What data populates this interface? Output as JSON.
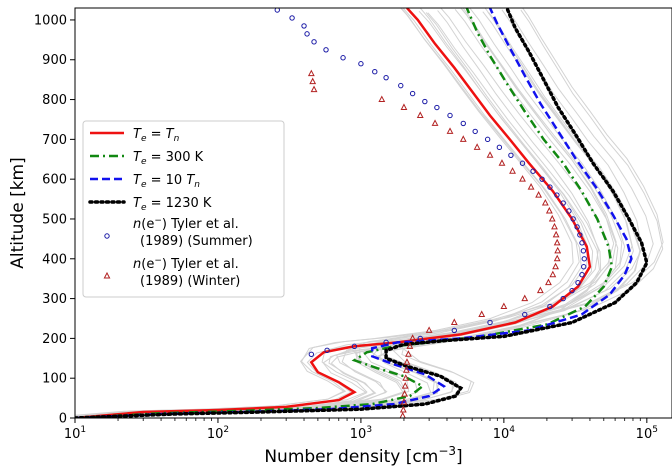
{
  "chart_data": {
    "type": "line",
    "xlabel": "Number density [cm",
    "xlabel_sup": "−3",
    "xlabel_end": "]",
    "ylabel": "Altitude [km]",
    "x_scale": "log",
    "xlim": [
      10,
      150000
    ],
    "ylim": [
      0,
      1030
    ],
    "x_ticks": [
      {
        "value": 10,
        "base": "10",
        "exp": "1"
      },
      {
        "value": 100,
        "base": "10",
        "exp": "2"
      },
      {
        "value": 1000,
        "base": "10",
        "exp": "3"
      },
      {
        "value": 10000,
        "base": "10",
        "exp": "4"
      },
      {
        "value": 100000,
        "base": "10",
        "exp": "5"
      }
    ],
    "y_ticks": [
      0,
      100,
      200,
      300,
      400,
      500,
      600,
      700,
      800,
      900,
      1000
    ],
    "legend_position": "center-left",
    "background_ensemble": {
      "color": "#d3d3d3",
      "count": 22
    },
    "series": [
      {
        "name": "T_e = T_n",
        "legend": {
          "base": "T",
          "sub": "e",
          "mid": " = ",
          "base2": "T",
          "sub2": "n"
        },
        "style": "solid",
        "color": "#ee1111",
        "points": [
          [
            10,
            0
          ],
          [
            30,
            15
          ],
          [
            100,
            20
          ],
          [
            300,
            28
          ],
          [
            700,
            45
          ],
          [
            900,
            65
          ],
          [
            700,
            90
          ],
          [
            500,
            115
          ],
          [
            450,
            140
          ],
          [
            550,
            165
          ],
          [
            900,
            180
          ],
          [
            1800,
            190
          ],
          [
            5000,
            210
          ],
          [
            12000,
            240
          ],
          [
            22000,
            280
          ],
          [
            33000,
            330
          ],
          [
            40000,
            380
          ],
          [
            38000,
            430
          ],
          [
            30000,
            500
          ],
          [
            22000,
            570
          ],
          [
            15000,
            640
          ],
          [
            11000,
            700
          ],
          [
            8000,
            760
          ],
          [
            6000,
            820
          ],
          [
            4500,
            880
          ],
          [
            3300,
            940
          ],
          [
            2500,
            1000
          ],
          [
            2100,
            1030
          ]
        ]
      },
      {
        "name": "T_e = 300 K",
        "legend": {
          "base": "T",
          "sub": "e",
          "mid": " = 300 K"
        },
        "style": "dashdot",
        "color": "#118811",
        "points": [
          [
            10,
            0
          ],
          [
            40,
            12
          ],
          [
            150,
            18
          ],
          [
            500,
            25
          ],
          [
            1200,
            35
          ],
          [
            2200,
            55
          ],
          [
            2700,
            80
          ],
          [
            2000,
            105
          ],
          [
            1300,
            125
          ],
          [
            900,
            145
          ],
          [
            1100,
            165
          ],
          [
            1700,
            180
          ],
          [
            3000,
            190
          ],
          [
            7000,
            205
          ],
          [
            20000,
            235
          ],
          [
            37000,
            280
          ],
          [
            50000,
            330
          ],
          [
            57000,
            380
          ],
          [
            54000,
            430
          ],
          [
            45000,
            500
          ],
          [
            35000,
            570
          ],
          [
            26000,
            640
          ],
          [
            19000,
            700
          ],
          [
            14000,
            770
          ],
          [
            10500,
            840
          ],
          [
            8000,
            910
          ],
          [
            6500,
            970
          ],
          [
            5500,
            1030
          ]
        ]
      },
      {
        "name": "T_e = 10 T_n",
        "legend": {
          "base": "T",
          "sub": "e",
          "mid": " = 10 ",
          "base2": "T",
          "sub2": "n"
        },
        "style": "dashed",
        "color": "#1111ee",
        "points": [
          [
            10,
            0
          ],
          [
            40,
            10
          ],
          [
            150,
            15
          ],
          [
            600,
            22
          ],
          [
            1700,
            35
          ],
          [
            3000,
            55
          ],
          [
            3800,
            80
          ],
          [
            2800,
            110
          ],
          [
            1700,
            135
          ],
          [
            1200,
            155
          ],
          [
            1200,
            175
          ],
          [
            1800,
            190
          ],
          [
            5000,
            200
          ],
          [
            15000,
            220
          ],
          [
            35000,
            260
          ],
          [
            55000,
            310
          ],
          [
            70000,
            360
          ],
          [
            78000,
            400
          ],
          [
            72000,
            450
          ],
          [
            58000,
            510
          ],
          [
            44000,
            580
          ],
          [
            32000,
            650
          ],
          [
            24000,
            720
          ],
          [
            18000,
            790
          ],
          [
            14000,
            860
          ],
          [
            11000,
            930
          ],
          [
            9000,
            990
          ],
          [
            8000,
            1030
          ]
        ]
      },
      {
        "name": "T_e = 1230 K",
        "legend": {
          "base": "T",
          "sub": "e",
          "mid": " = 1230 K"
        },
        "style": "dotted",
        "color": "#000000",
        "points": [
          [
            10,
            0
          ],
          [
            50,
            10
          ],
          [
            200,
            15
          ],
          [
            1000,
            22
          ],
          [
            2800,
            35
          ],
          [
            4600,
            55
          ],
          [
            5000,
            75
          ],
          [
            3600,
            105
          ],
          [
            2100,
            130
          ],
          [
            1500,
            150
          ],
          [
            1500,
            170
          ],
          [
            2000,
            185
          ],
          [
            4000,
            195
          ],
          [
            10000,
            205
          ],
          [
            30000,
            240
          ],
          [
            60000,
            290
          ],
          [
            85000,
            340
          ],
          [
            100000,
            390
          ],
          [
            92000,
            440
          ],
          [
            75000,
            500
          ],
          [
            58000,
            570
          ],
          [
            42000,
            640
          ],
          [
            32000,
            710
          ],
          [
            24000,
            780
          ],
          [
            19000,
            850
          ],
          [
            15000,
            920
          ],
          [
            12000,
            980
          ],
          [
            10500,
            1030
          ]
        ]
      },
      {
        "name": "n(e⁻) Tyler et al. (1989) (Summer)",
        "legend_line1": "(e",
        "legend_line2": "(1989) (Summer)",
        "style": "circle-marker",
        "color": "#1a1aa6",
        "points": [
          [
            260,
            1025
          ],
          [
            330,
            1005
          ],
          [
            400,
            985
          ],
          [
            420,
            965
          ],
          [
            470,
            945
          ],
          [
            570,
            925
          ],
          [
            750,
            905
          ],
          [
            1000,
            890
          ],
          [
            1250,
            870
          ],
          [
            1500,
            855
          ],
          [
            1900,
            835
          ],
          [
            2300,
            815
          ],
          [
            2800,
            795
          ],
          [
            3400,
            780
          ],
          [
            4200,
            760
          ],
          [
            5200,
            740
          ],
          [
            6300,
            720
          ],
          [
            7700,
            700
          ],
          [
            9300,
            680
          ],
          [
            11200,
            660
          ],
          [
            13500,
            640
          ],
          [
            16000,
            620
          ],
          [
            18500,
            600
          ],
          [
            21000,
            580
          ],
          [
            23500,
            560
          ],
          [
            26000,
            540
          ],
          [
            28500,
            520
          ],
          [
            30500,
            500
          ],
          [
            32500,
            480
          ],
          [
            34000,
            460
          ],
          [
            35200,
            440
          ],
          [
            36000,
            420
          ],
          [
            36500,
            400
          ],
          [
            36200,
            380
          ],
          [
            35200,
            360
          ],
          [
            33000,
            340
          ],
          [
            30000,
            320
          ],
          [
            26000,
            300
          ],
          [
            21000,
            280
          ],
          [
            14000,
            260
          ],
          [
            8000,
            240
          ],
          [
            4500,
            220
          ],
          [
            2600,
            200
          ],
          [
            1500,
            190
          ],
          [
            900,
            180
          ],
          [
            580,
            170
          ],
          [
            450,
            160
          ]
        ]
      },
      {
        "name": "n(e⁻) Tyler et al. (1989) (Winter)",
        "legend_line1": "(e",
        "legend_line2": "(1989) (Winter)",
        "style": "triangle-marker",
        "color": "#b22222",
        "points": [
          [
            450,
            865
          ],
          [
            460,
            845
          ],
          [
            470,
            825
          ],
          [
            1400,
            800
          ],
          [
            2000,
            780
          ],
          [
            2600,
            760
          ],
          [
            3300,
            740
          ],
          [
            4200,
            720
          ],
          [
            5200,
            700
          ],
          [
            6500,
            680
          ],
          [
            8000,
            660
          ],
          [
            9700,
            640
          ],
          [
            11500,
            620
          ],
          [
            13500,
            600
          ],
          [
            15500,
            580
          ],
          [
            17500,
            560
          ],
          [
            19500,
            540
          ],
          [
            20800,
            520
          ],
          [
            21800,
            500
          ],
          [
            22600,
            480
          ],
          [
            23200,
            460
          ],
          [
            23600,
            440
          ],
          [
            23800,
            420
          ],
          [
            23600,
            400
          ],
          [
            23000,
            380
          ],
          [
            22000,
            360
          ],
          [
            20500,
            340
          ],
          [
            18000,
            320
          ],
          [
            14000,
            300
          ],
          [
            10000,
            280
          ],
          [
            7000,
            260
          ],
          [
            4500,
            240
          ],
          [
            3000,
            220
          ],
          [
            2300,
            200
          ],
          [
            2200,
            180
          ],
          [
            2150,
            160
          ],
          [
            2100,
            140
          ],
          [
            2080,
            120
          ],
          [
            2060,
            100
          ],
          [
            2040,
            80
          ],
          [
            2020,
            60
          ],
          [
            2000,
            40
          ],
          [
            1980,
            20
          ],
          [
            1960,
            5
          ]
        ]
      }
    ]
  }
}
